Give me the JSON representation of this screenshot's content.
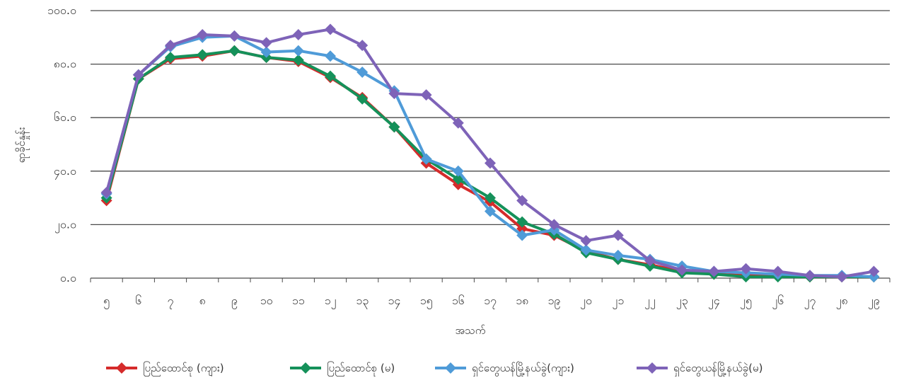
{
  "chart_data": {
    "type": "line",
    "title": "",
    "xlabel": "အသက်",
    "ylabel": "ရာခိုင်နှုန်း",
    "ylim": [
      0,
      100
    ],
    "y_ticks": [
      "၀.၀",
      "၂၀.၀",
      "၄၀.၀",
      "၆၀.၀",
      "၈၀.၀",
      "၁၀၀.၀"
    ],
    "grid": "horizontal",
    "legend_position": "bottom",
    "categories": [
      "၅",
      "၆",
      "၇",
      "၈",
      "၉",
      "၁၀",
      "၁၁",
      "၁၂",
      "၁၃",
      "၁၄",
      "၁၅",
      "၁၆",
      "၁၇",
      "၁၈",
      "၁၉",
      "၂၀",
      "၂၁",
      "၂၂",
      "၂၃",
      "၂၄",
      "၂၅",
      "၂၆",
      "၂၇",
      "၂၈",
      "၂၉"
    ],
    "series": [
      {
        "name": "ပြည်ထောင်စု (ကျား)",
        "color": "#d52b2b",
        "values": [
          29.0,
          74.5,
          82.0,
          83.0,
          85.0,
          82.5,
          81.0,
          75.0,
          67.5,
          56.5,
          43.0,
          35.0,
          28.5,
          18.5,
          16.0,
          10.0,
          7.0,
          5.0,
          2.5,
          1.5,
          1.0,
          1.0,
          0.5,
          0.5,
          0.5
        ]
      },
      {
        "name": "ပြည်ထောင်စု (မ)",
        "color": "#15915a",
        "values": [
          30.0,
          74.5,
          82.5,
          83.5,
          85.0,
          82.5,
          81.5,
          75.5,
          67.0,
          56.5,
          44.5,
          37.0,
          30.0,
          21.0,
          16.5,
          9.5,
          7.0,
          4.5,
          2.0,
          1.5,
          0.5,
          0.5,
          0.5,
          0.5,
          0.5
        ]
      },
      {
        "name": "ရှင်တွေယန်မြို့နယ်ခွဲ(ကျား)",
        "color": "#4f9bd8",
        "values": [
          31.5,
          76.0,
          86.5,
          90.0,
          90.5,
          84.5,
          85.0,
          83.0,
          77.0,
          70.0,
          44.5,
          40.0,
          25.0,
          16.0,
          18.0,
          10.5,
          8.5,
          7.0,
          4.5,
          2.5,
          2.0,
          1.5,
          1.0,
          1.0,
          0.5
        ]
      },
      {
        "name": "ရှင်တွေယန်မြို့နယ်ခွဲ(မ)",
        "color": "#7e63b8",
        "values": [
          32.0,
          76.0,
          87.0,
          91.0,
          90.5,
          88.0,
          91.0,
          93.0,
          87.0,
          69.0,
          68.5,
          58.0,
          43.0,
          29.0,
          20.0,
          14.0,
          16.0,
          6.5,
          3.0,
          2.5,
          3.5,
          2.5,
          1.0,
          0.5,
          2.5
        ]
      }
    ]
  }
}
